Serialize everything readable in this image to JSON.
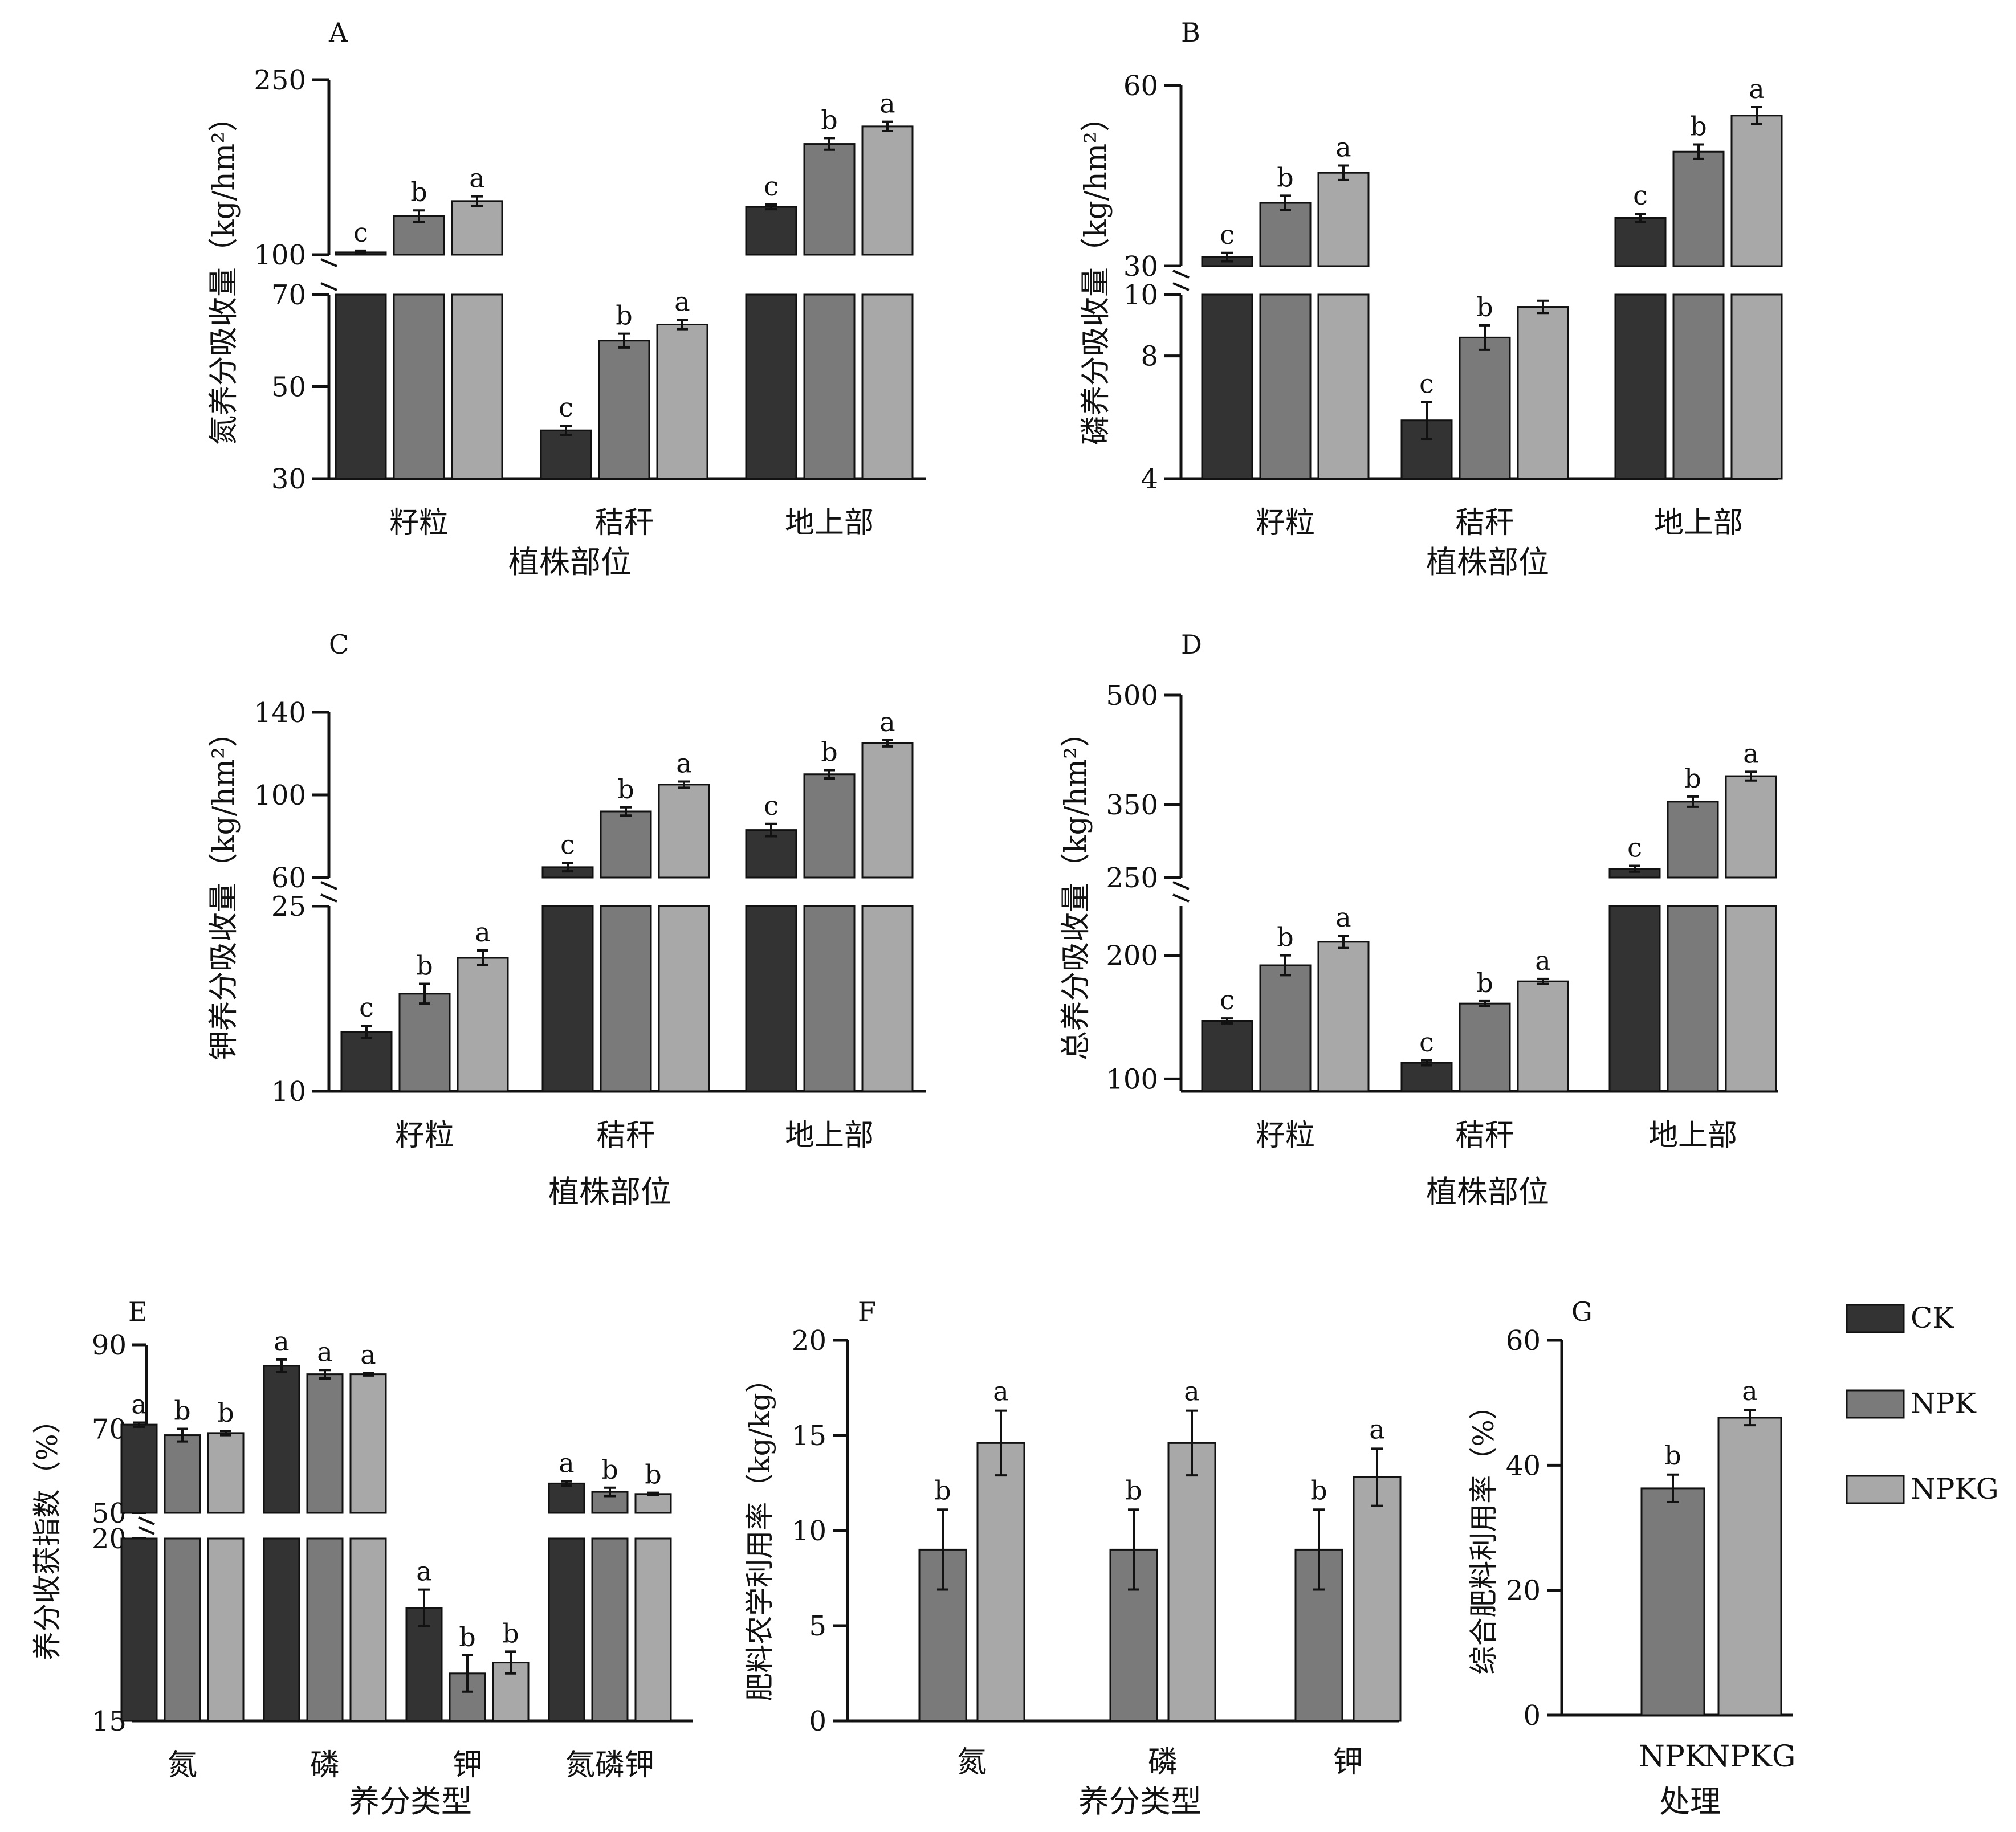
{
  "colors": {
    "CK": "#333333",
    "NPK": "#7a7a7a",
    "NPKG": "#a8a8a8"
  },
  "legend": [
    {
      "label": "CK",
      "key": "CK"
    },
    {
      "label": "NPK",
      "key": "NPK"
    },
    {
      "label": "NPKG",
      "key": "NPKG"
    }
  ],
  "chart_data": [
    {
      "id": "A",
      "letter": "A",
      "type": "bar",
      "ylabel": "氮养分吸收量（kg/hm²）",
      "xlabel": "植株部位",
      "categories": [
        "籽粒",
        "秸秆",
        "地上部"
      ],
      "y_break": true,
      "ylim_lower": [
        30,
        70
      ],
      "ylim_upper": [
        100,
        250
      ],
      "yticks_lower": [
        30,
        50,
        70
      ],
      "yticks_upper": [
        100,
        250
      ],
      "series": [
        {
          "name": "CK",
          "values": [
            102,
            40.5,
            141
          ],
          "errors": [
            1.5,
            1,
            2
          ],
          "letters": [
            "c",
            "c",
            "c"
          ]
        },
        {
          "name": "NPK",
          "values": [
            133,
            60,
            195
          ],
          "errors": [
            5,
            1.5,
            5
          ],
          "letters": [
            "b",
            "b",
            "b"
          ]
        },
        {
          "name": "NPKG",
          "values": [
            146,
            63.5,
            210
          ],
          "errors": [
            4,
            1,
            4
          ],
          "letters": [
            "a",
            "a",
            "a"
          ]
        }
      ]
    },
    {
      "id": "B",
      "letter": "B",
      "type": "bar",
      "ylabel": "磷养分吸收量（kg/hm²）",
      "xlabel": "植株部位",
      "categories": [
        "籽粒",
        "秸秆",
        "地上部"
      ],
      "y_break": true,
      "ylim_lower": [
        4,
        10
      ],
      "ylim_upper": [
        30,
        60
      ],
      "yticks_lower": [
        4,
        8,
        10
      ],
      "yticks_upper": [
        30,
        60
      ],
      "series": [
        {
          "name": "CK",
          "values": [
            31.5,
            5.9,
            38
          ],
          "errors": [
            0.7,
            0.6,
            0.7
          ],
          "letters": [
            "c",
            "c",
            "c"
          ]
        },
        {
          "name": "NPK",
          "values": [
            40.5,
            8.6,
            49
          ],
          "errors": [
            1.2,
            0.4,
            1.2
          ],
          "letters": [
            "b",
            "b",
            "b"
          ]
        },
        {
          "name": "NPKG",
          "values": [
            45.5,
            9.6,
            55
          ],
          "errors": [
            1.2,
            0.2,
            1.4
          ],
          "letters": [
            "a",
            "a",
            "a"
          ]
        }
      ]
    },
    {
      "id": "C",
      "letter": "C",
      "type": "bar",
      "ylabel": "钾养分吸收量（kg/hm²）",
      "xlabel": "植株部位",
      "categories": [
        "籽粒",
        "秸秆",
        "地上部"
      ],
      "y_break": true,
      "ylim_lower": [
        10,
        25
      ],
      "ylim_upper": [
        60,
        140
      ],
      "yticks_lower": [
        10,
        25
      ],
      "yticks_upper": [
        60,
        100,
        140
      ],
      "series": [
        {
          "name": "CK",
          "values": [
            14.8,
            65,
            83
          ],
          "errors": [
            0.5,
            2,
            3
          ],
          "letters": [
            "c",
            "c",
            "c"
          ]
        },
        {
          "name": "NPK",
          "values": [
            17.9,
            92,
            110
          ],
          "errors": [
            0.8,
            2,
            2
          ],
          "letters": [
            "b",
            "b",
            "b"
          ]
        },
        {
          "name": "NPKG",
          "values": [
            20.8,
            105,
            125
          ],
          "errors": [
            0.6,
            1.5,
            1.5
          ],
          "letters": [
            "a",
            "a",
            "a"
          ]
        }
      ]
    },
    {
      "id": "D",
      "letter": "D",
      "type": "bar",
      "ylabel": "总养分吸收量（kg/hm²）",
      "xlabel": "植株部位",
      "categories": [
        "籽粒",
        "秸秆",
        "地上部"
      ],
      "y_break": true,
      "ylim_lower": [
        90,
        240
      ],
      "ylim_upper": [
        250,
        500
      ],
      "yticks_lower": [
        100,
        200
      ],
      "yticks_upper": [
        250,
        350,
        500
      ],
      "series": [
        {
          "name": "CK",
          "values": [
            147,
            113,
            262
          ],
          "errors": [
            2,
            2,
            4
          ],
          "letters": [
            "c",
            "c",
            "c"
          ]
        },
        {
          "name": "NPK",
          "values": [
            192,
            161,
            354
          ],
          "errors": [
            8,
            2,
            7
          ],
          "letters": [
            "b",
            "b",
            "b"
          ]
        },
        {
          "name": "NPKG",
          "values": [
            211,
            179,
            389
          ],
          "errors": [
            5,
            2,
            6
          ],
          "letters": [
            "a",
            "a",
            "a"
          ]
        }
      ]
    },
    {
      "id": "E",
      "letter": "E",
      "type": "bar",
      "ylabel": "养分收获指数（%）",
      "xlabel": "养分类型",
      "categories": [
        "氮",
        "磷",
        "钾",
        "氮磷钾"
      ],
      "y_break": true,
      "ylim_lower": [
        15,
        20
      ],
      "ylim_upper": [
        50,
        90
      ],
      "yticks_lower": [
        15,
        20
      ],
      "yticks_upper": [
        50,
        70,
        90
      ],
      "series": [
        {
          "name": "CK",
          "values": [
            71,
            85,
            18.1,
            57
          ],
          "errors": [
            0.5,
            1.5,
            0.5,
            0.5
          ],
          "letters": [
            "a",
            "a",
            "a",
            "a"
          ]
        },
        {
          "name": "NPK",
          "values": [
            68.5,
            83,
            16.3,
            55
          ],
          "errors": [
            1.5,
            1,
            0.5,
            1
          ],
          "letters": [
            "b",
            "a",
            "b",
            "b"
          ]
        },
        {
          "name": "NPKG",
          "values": [
            69,
            83,
            16.6,
            54.5
          ],
          "errors": [
            0.5,
            0.3,
            0.3,
            0.3
          ],
          "letters": [
            "b",
            "a",
            "b",
            "b"
          ]
        }
      ]
    },
    {
      "id": "F",
      "letter": "F",
      "type": "bar",
      "ylabel": "肥料农学利用率（kg/kg）",
      "xlabel": "养分类型",
      "categories": [
        "氮",
        "磷",
        "钾"
      ],
      "ylim": [
        0,
        20
      ],
      "yticks": [
        0,
        5,
        10,
        15,
        20
      ],
      "series": [
        {
          "name": "NPK",
          "values": [
            9,
            9,
            9
          ],
          "errors": [
            2.1,
            2.1,
            2.1
          ],
          "letters": [
            "b",
            "b",
            "b"
          ]
        },
        {
          "name": "NPKG",
          "values": [
            14.6,
            14.6,
            12.8
          ],
          "errors": [
            1.7,
            1.7,
            1.5
          ],
          "letters": [
            "a",
            "a",
            "a"
          ]
        }
      ]
    },
    {
      "id": "G",
      "letter": "G",
      "type": "bar",
      "ylabel": "综合肥料利用率（%）",
      "xlabel": "处理",
      "categories": [
        "NPK",
        "NPKG"
      ],
      "ylim": [
        0,
        60
      ],
      "yticks": [
        0,
        20,
        40,
        60
      ],
      "values": [
        36.3,
        47.6
      ],
      "errors": [
        2.2,
        1.2
      ],
      "letters": [
        "b",
        "a"
      ]
    }
  ]
}
